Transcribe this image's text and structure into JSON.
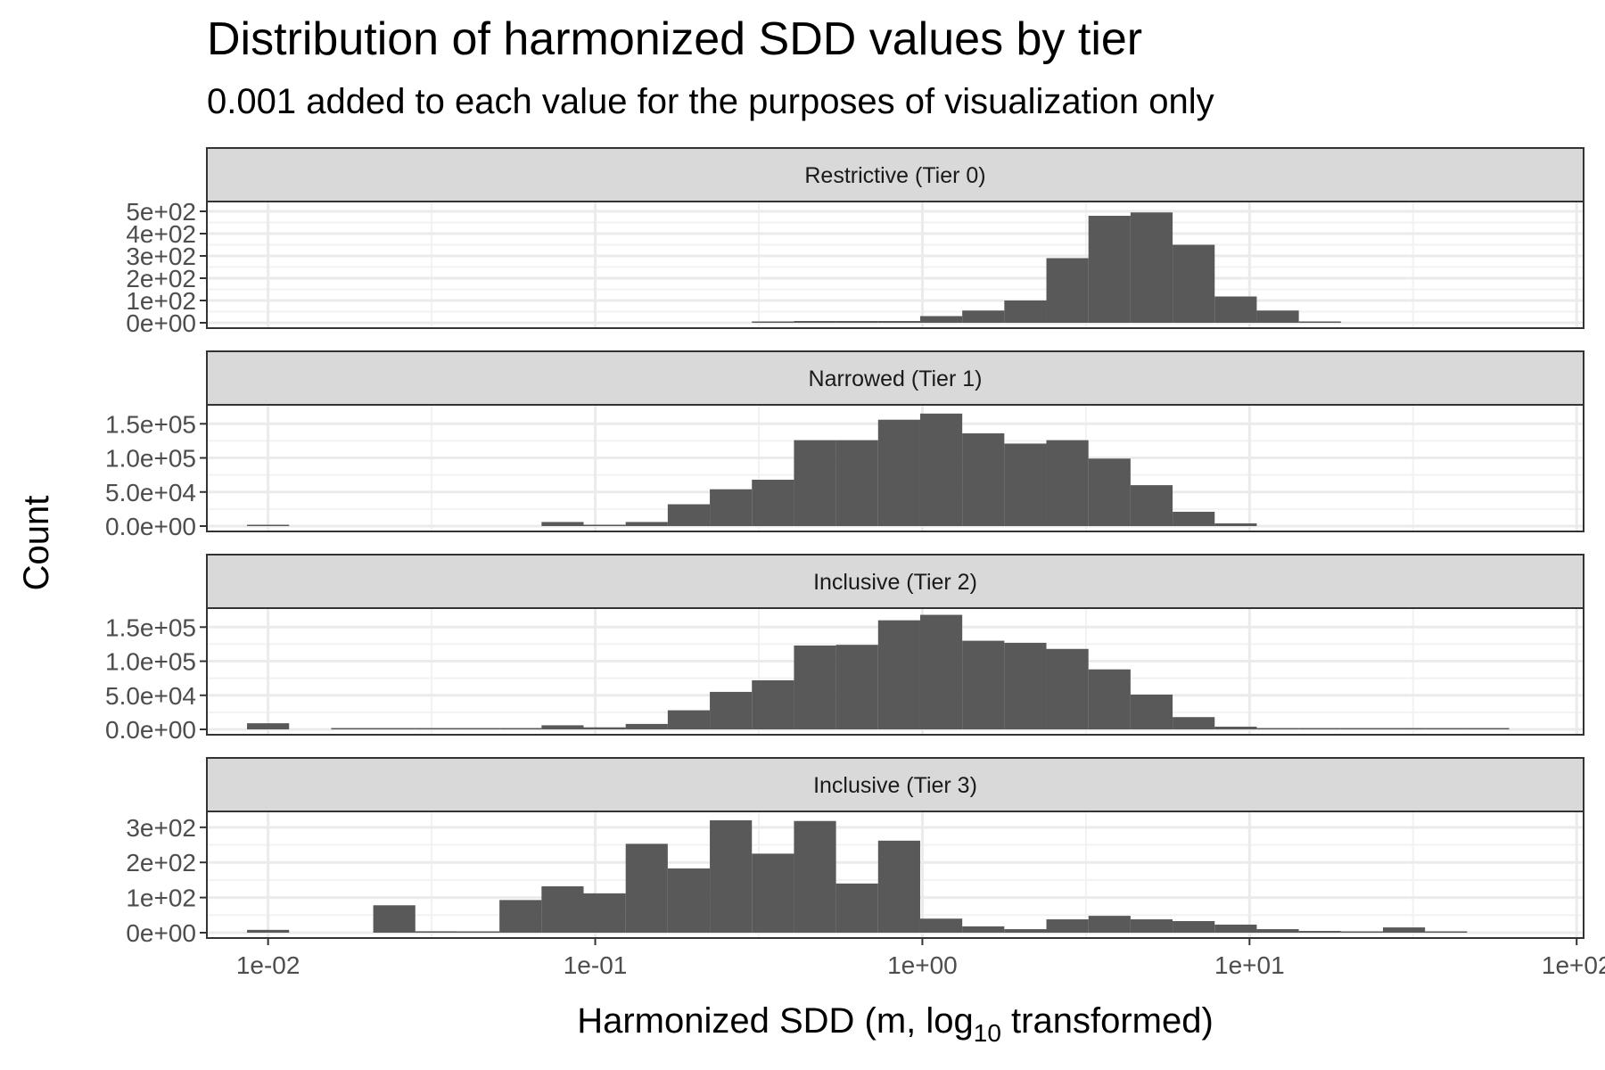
{
  "chart_data": {
    "type": "bar",
    "title": "Distribution of harmonized SDD values by tier",
    "subtitle": "0.001 added to each value for the purposes of visualization only",
    "xlabel": "Harmonized SDD (m,  log",
    "xlabel_sub": "10",
    "xlabel_end": " transformed)",
    "ylabel": "Count",
    "x_scale": "log10",
    "x_range": [
      0.0065,
      105
    ],
    "x_ticks": [
      0.01,
      0.1,
      1,
      10,
      100
    ],
    "x_tick_labels": [
      "1e-02",
      "1e-01",
      "1e+00",
      "1e+01",
      "1e+02"
    ],
    "bin_width_log10": 0.1286,
    "bin_start": 0.01,
    "grid": true,
    "facets": [
      {
        "label": "Restrictive (Tier 0)",
        "ylim": [
          0,
          520
        ],
        "y_ticks": [
          0,
          100,
          200,
          300,
          400,
          500
        ],
        "y_tick_labels": [
          "0e+00",
          "1e+02",
          "2e+02",
          "3e+02",
          "4e+02",
          "5e+02"
        ],
        "counts": [
          0,
          0,
          0,
          0,
          0,
          0,
          0,
          0,
          0,
          0,
          0,
          0,
          0,
          0,
          0,
          0,
          0,
          0,
          0,
          0,
          0,
          0,
          0,
          0,
          0,
          0,
          0,
          0,
          0,
          0,
          0,
          0,
          0,
          0,
          0,
          0,
          0,
          0,
          0,
          0,
          0,
          0,
          0,
          0,
          0,
          0,
          0,
          0,
          0,
          0,
          0,
          0,
          0,
          0,
          0,
          0,
          0,
          0,
          0,
          0,
          0,
          0,
          0,
          0,
          0,
          0,
          0,
          0,
          0,
          0,
          0,
          0,
          0,
          0,
          0,
          0,
          0,
          0,
          0,
          0,
          0,
          0,
          0,
          0,
          0,
          0,
          0,
          0,
          0,
          0,
          0,
          0,
          0,
          0,
          0,
          0,
          0,
          0,
          0,
          0,
          0,
          0,
          0,
          0,
          0,
          0,
          0,
          0,
          0,
          0,
          0,
          0,
          0,
          0,
          0,
          0,
          0,
          0,
          0,
          0,
          0,
          0,
          0,
          0,
          0,
          0,
          0,
          0,
          0,
          0,
          0,
          0,
          0,
          0,
          0,
          0,
          0,
          0,
          0,
          0,
          0,
          0,
          0,
          0,
          0,
          0,
          0,
          0,
          0,
          0
        ]
      },
      {
        "label": "Narrowed (Tier 1)",
        "ylim": [
          0,
          170000
        ],
        "y_ticks": [
          0,
          50000,
          100000,
          150000
        ],
        "y_tick_labels": [
          "0.0e+00",
          "5.0e+04",
          "1.0e+05",
          "1.5e+05"
        ],
        "counts": []
      },
      {
        "label": "Inclusive (Tier 2)",
        "ylim": [
          0,
          170000
        ],
        "y_ticks": [
          0,
          50000,
          100000,
          150000
        ],
        "y_tick_labels": [
          "0.0e+00",
          "5.0e+04",
          "1.0e+05",
          "1.5e+05"
        ],
        "counts": []
      },
      {
        "label": "Inclusive (Tier 3)",
        "ylim": [
          0,
          330
        ],
        "y_ticks": [
          0,
          100,
          200,
          300
        ],
        "y_tick_labels": [
          "0e+00",
          "1e+02",
          "2e+02",
          "3e+02"
        ],
        "counts": []
      }
    ]
  }
}
